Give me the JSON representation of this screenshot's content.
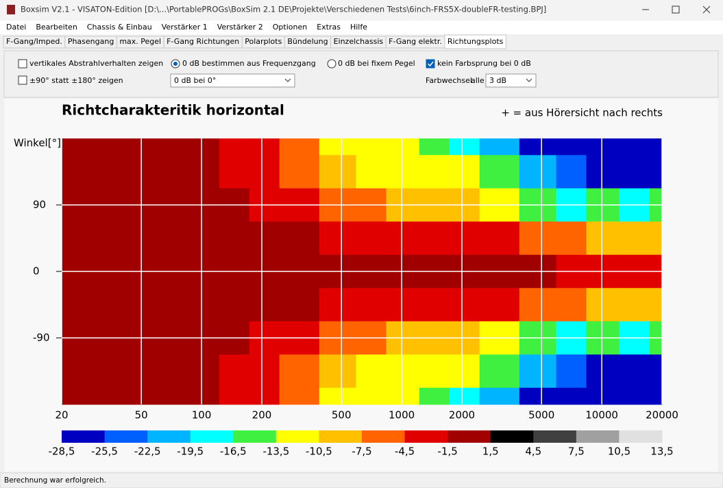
{
  "window": {
    "title": "Boxsim V2.1 - VISATON-Edition [D:\\...\\PortablePROGs\\BoxSim 2.1 DE\\Projekte\\Verschiedenen Tests\\6inch-FRS5X-doubleFR-testing.BPJ]"
  },
  "menu": [
    "Datei",
    "Bearbeiten",
    "Chassis & Einbau",
    "Verstärker 1",
    "Verstärker 2",
    "Optionen",
    "Extras",
    "Hilfe"
  ],
  "tabs": [
    "F-Gang/Imped.",
    "Phasengang",
    "max. Pegel",
    "F-Gang Richtungen",
    "Polarplots",
    "Bündelung",
    "Einzelchassis",
    "F-Gang elektr.",
    "Richtungsplots"
  ],
  "controls": {
    "vertical": "vertikales Abstrahlverhalten zeigen",
    "range90": "±90° statt ±180° zeigen",
    "radio_freq": "0 dB bestimmen aus Frequenzgang",
    "radio_fixed": "0 dB bei fixem Pegel",
    "no_jump": "kein Farbsprung bei 0 dB",
    "ref_select": "0 dB bei 0°",
    "step_label": "Farbwechsel",
    "step_every": "alle",
    "step_select": "3 dB"
  },
  "status": "Berechnung war erfolgreich.",
  "chart_data": {
    "type": "heatmap",
    "title": "Richtcharakteritik horizontal",
    "annotation": "+ = aus Hörersicht nach rechts",
    "y_label": "Winkel[°]",
    "x_scale": "log",
    "grid": true,
    "xlim": [
      20,
      20000
    ],
    "xticks": [
      20,
      50,
      100,
      200,
      500,
      1000,
      2000,
      5000,
      10000,
      20000
    ],
    "ylim": [
      -180,
      180
    ],
    "yticks": [
      90,
      0,
      -90
    ],
    "x": [
      20,
      50,
      100,
      150,
      200,
      300,
      500,
      700,
      1000,
      1500,
      2000,
      3000,
      5000,
      7000,
      10000,
      15000,
      20000
    ],
    "y": [
      180,
      135,
      90,
      45,
      0,
      -45,
      -90,
      -135,
      -180
    ],
    "values": [
      [
        0,
        0,
        0,
        -3,
        -3,
        -6,
        -12,
        -12,
        -12,
        -15,
        -18,
        -21,
        -27,
        -27,
        -27,
        -27,
        -27
      ],
      [
        0,
        0,
        0,
        -3,
        -3,
        -6,
        -9,
        -12,
        -12,
        -12,
        -12,
        -15,
        -21,
        -24,
        -27,
        -27,
        -27
      ],
      [
        0,
        0,
        0,
        0,
        -3,
        -3,
        -6,
        -6,
        -9,
        -9,
        -9,
        -12,
        -15,
        -18,
        -15,
        -18,
        -15
      ],
      [
        0,
        0,
        0,
        0,
        0,
        0,
        -3,
        -3,
        -3,
        -3,
        -3,
        -3,
        -6,
        -6,
        -9,
        -9,
        -9
      ],
      [
        0,
        0,
        0,
        0,
        0,
        0,
        0,
        0,
        0,
        0,
        0,
        0,
        0,
        -3,
        -3,
        -3,
        -3
      ],
      [
        0,
        0,
        0,
        0,
        0,
        0,
        -3,
        -3,
        -3,
        -3,
        -3,
        -3,
        -6,
        -6,
        -9,
        -9,
        -9
      ],
      [
        0,
        0,
        0,
        0,
        -3,
        -3,
        -6,
        -6,
        -9,
        -9,
        -9,
        -12,
        -15,
        -18,
        -15,
        -18,
        -15
      ],
      [
        0,
        0,
        0,
        -3,
        -3,
        -6,
        -9,
        -12,
        -12,
        -12,
        -12,
        -15,
        -21,
        -24,
        -27,
        -27,
        -27
      ],
      [
        0,
        0,
        0,
        -3,
        -3,
        -6,
        -12,
        -12,
        -12,
        -15,
        -18,
        -21,
        -27,
        -27,
        -27,
        -27,
        -27
      ]
    ],
    "colorbar": {
      "levels": [
        {
          "value": -28.5,
          "label": "-28,5"
        },
        {
          "value": -25.5,
          "label": "-25,5"
        },
        {
          "value": -22.5,
          "label": "-22,5"
        },
        {
          "value": -19.5,
          "label": "-19,5"
        },
        {
          "value": -16.5,
          "label": "-16,5"
        },
        {
          "value": -13.5,
          "label": "-13,5"
        },
        {
          "value": -10.5,
          "label": "-10,5"
        },
        {
          "value": -7.5,
          "label": "-7,5"
        },
        {
          "value": -4.5,
          "label": "-4,5"
        },
        {
          "value": -1.5,
          "label": "-1,5"
        },
        {
          "value": 1.5,
          "label": "1,5"
        },
        {
          "value": 4.5,
          "label": "4,5"
        },
        {
          "value": 7.5,
          "label": "7,5"
        },
        {
          "value": 10.5,
          "label": "10,5"
        },
        {
          "value": 13.5,
          "label": "13,5"
        }
      ],
      "colors": [
        "#0000c0",
        "#0060ff",
        "#00b4ff",
        "#00ffff",
        "#40f040",
        "#ffff00",
        "#ffc000",
        "#ff6400",
        "#e00000",
        "#a00000",
        "#000000",
        "#404040",
        "#a0a0a0",
        "#e0e0e0"
      ]
    }
  }
}
